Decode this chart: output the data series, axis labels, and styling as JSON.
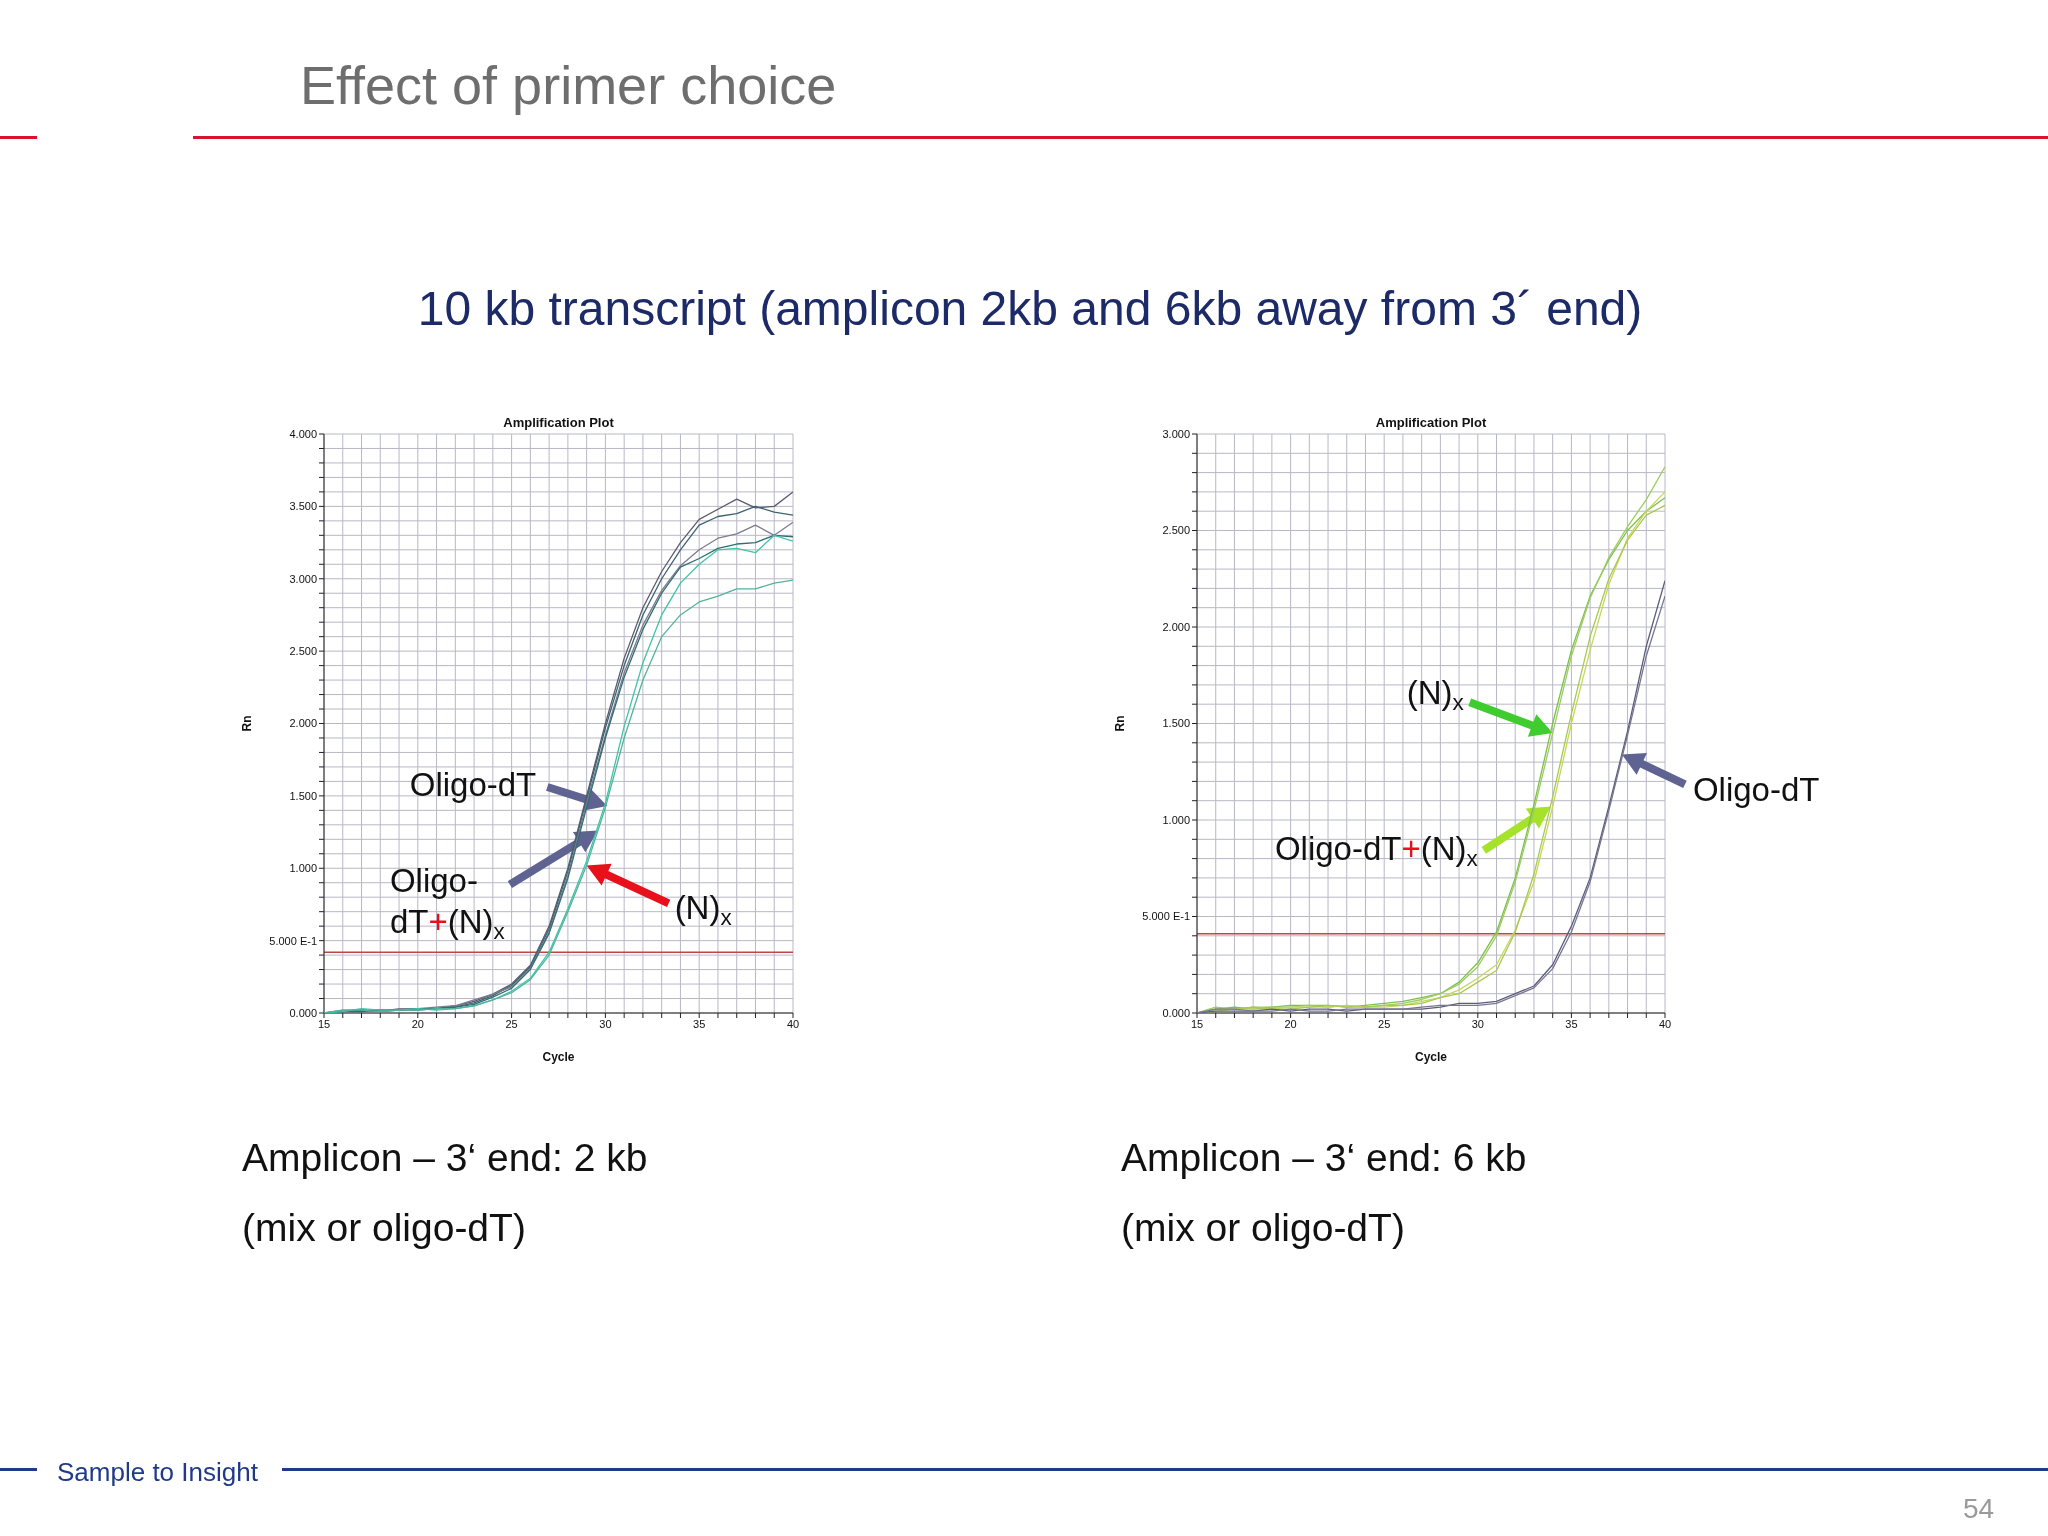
{
  "chart_data": [
    {
      "type": "line",
      "title": "Amplification Plot",
      "xlabel": "Cycle",
      "ylabel": "Rn",
      "grid": true,
      "marker": "none",
      "x": [
        15,
        16,
        17,
        18,
        19,
        20,
        21,
        22,
        23,
        24,
        25,
        26,
        27,
        28,
        29,
        30,
        31,
        32,
        33,
        34,
        35,
        36,
        37,
        38,
        39,
        40
      ],
      "xlim": [
        15,
        40
      ],
      "ylim": [
        0,
        4
      ],
      "xticks": [
        15,
        {
          "value": 16,
          "label": null
        },
        {
          "value": 17,
          "label": null
        },
        {
          "value": 18,
          "label": null
        },
        {
          "value": 19,
          "label": null
        },
        20,
        {
          "value": 21,
          "label": null
        },
        {
          "value": 22,
          "label": null
        },
        {
          "value": 23,
          "label": null
        },
        {
          "value": 24,
          "label": null
        },
        25,
        {
          "value": 26,
          "label": null
        },
        {
          "value": 27,
          "label": null
        },
        {
          "value": 28,
          "label": null
        },
        {
          "value": 29,
          "label": null
        },
        30,
        {
          "value": 31,
          "label": null
        },
        {
          "value": 32,
          "label": null
        },
        {
          "value": 33,
          "label": null
        },
        {
          "value": 34,
          "label": null
        },
        35,
        {
          "value": 36,
          "label": null
        },
        {
          "value": 37,
          "label": null
        },
        {
          "value": 38,
          "label": null
        },
        {
          "value": 39,
          "label": null
        },
        40
      ],
      "yticks": [
        {
          "value": 0,
          "label": "0.000"
        },
        {
          "value": 0.1,
          "label": null
        },
        {
          "value": 0.2,
          "label": null
        },
        {
          "value": 0.3,
          "label": null
        },
        {
          "value": 0.4,
          "label": null
        },
        {
          "value": 0.5,
          "label": "5.000 E-1"
        },
        {
          "value": 0.6,
          "label": null
        },
        {
          "value": 0.7,
          "label": null
        },
        {
          "value": 0.8,
          "label": null
        },
        {
          "value": 0.9,
          "label": null
        },
        {
          "value": 1,
          "label": "1.000"
        },
        {
          "value": 1.1,
          "label": null
        },
        {
          "value": 1.2,
          "label": null
        },
        {
          "value": 1.3,
          "label": null
        },
        {
          "value": 1.4,
          "label": null
        },
        {
          "value": 1.5,
          "label": "1.500"
        },
        {
          "value": 1.6,
          "label": null
        },
        {
          "value": 1.7,
          "label": null
        },
        {
          "value": 1.8,
          "label": null
        },
        {
          "value": 1.9,
          "label": null
        },
        {
          "value": 2,
          "label": "2.000"
        },
        {
          "value": 2.1,
          "label": null
        },
        {
          "value": 2.2,
          "label": null
        },
        {
          "value": 2.3,
          "label": null
        },
        {
          "value": 2.4,
          "label": null
        },
        {
          "value": 2.5,
          "label": "2.500"
        },
        {
          "value": 2.6,
          "label": null
        },
        {
          "value": 2.7,
          "label": null
        },
        {
          "value": 2.8,
          "label": null
        },
        {
          "value": 2.9,
          "label": null
        },
        {
          "value": 3,
          "label": "3.000"
        },
        {
          "value": 3.1,
          "label": null
        },
        {
          "value": 3.2,
          "label": null
        },
        {
          "value": 3.3,
          "label": null
        },
        {
          "value": 3.4,
          "label": null
        },
        {
          "value": 3.5,
          "label": "3.500"
        },
        {
          "value": 3.6,
          "label": null
        },
        {
          "value": 3.7,
          "label": null
        },
        {
          "value": 3.8,
          "label": null
        },
        {
          "value": 3.9,
          "label": null
        },
        {
          "value": 4,
          "label": "4.000"
        }
      ],
      "series": [
        {
          "color": "#5b5b6e",
          "values": [
            0,
            0.01,
            0.02,
            0.01,
            0.02,
            0.03,
            0.03,
            0.05,
            0.08,
            0.13,
            0.2,
            0.33,
            0.6,
            1.0,
            1.5,
            2.0,
            2.45,
            2.8,
            3.05,
            3.25,
            3.41,
            3.48,
            3.55,
            3.49,
            3.5,
            3.6
          ]
        },
        {
          "color": "#3d6270",
          "values": [
            0,
            0.01,
            0.01,
            0.02,
            0.02,
            0.02,
            0.03,
            0.04,
            0.07,
            0.12,
            0.19,
            0.32,
            0.58,
            0.98,
            1.48,
            1.97,
            2.4,
            2.75,
            3.0,
            3.2,
            3.37,
            3.43,
            3.45,
            3.5,
            3.46,
            3.44
          ]
        },
        {
          "color": "#7c7c8e",
          "values": [
            0,
            0.02,
            0.02,
            0.01,
            0.03,
            0.03,
            0.04,
            0.05,
            0.09,
            0.13,
            0.18,
            0.31,
            0.56,
            0.95,
            1.45,
            1.92,
            2.35,
            2.68,
            2.92,
            3.09,
            3.2,
            3.28,
            3.31,
            3.37,
            3.3,
            3.39
          ]
        },
        {
          "color": "#2f6e74",
          "values": [
            0,
            0.01,
            0.02,
            0.02,
            0.02,
            0.03,
            0.03,
            0.04,
            0.06,
            0.11,
            0.17,
            0.3,
            0.55,
            0.93,
            1.42,
            1.9,
            2.32,
            2.65,
            2.9,
            3.08,
            3.14,
            3.21,
            3.24,
            3.25,
            3.3,
            3.29
          ]
        },
        {
          "color": "#3fc4a6",
          "values": [
            0,
            0.01,
            0.03,
            0.02,
            0.02,
            0.03,
            0.02,
            0.03,
            0.05,
            0.09,
            0.15,
            0.24,
            0.42,
            0.72,
            1.05,
            1.45,
            1.98,
            2.42,
            2.75,
            2.97,
            3.1,
            3.2,
            3.21,
            3.18,
            3.3,
            3.26
          ]
        },
        {
          "color": "#52b39c",
          "values": [
            0,
            0.02,
            0.02,
            0.01,
            0.02,
            0.02,
            0.03,
            0.03,
            0.05,
            0.09,
            0.14,
            0.23,
            0.4,
            0.7,
            1.02,
            1.42,
            1.9,
            2.3,
            2.6,
            2.75,
            2.84,
            2.88,
            2.93,
            2.93,
            2.97,
            2.99
          ]
        }
      ],
      "ref_lines": [
        {
          "axis": "y",
          "value": 0.42,
          "color": "#b84a44"
        }
      ],
      "annotations": [
        "Effect of primer choice",
        "10 kb transcript (amplicon 2kb and 6kb away from 3´ end)",
        {
          "text": "Oligo-dT",
          "x": 30.1,
          "y": 1.43
        },
        {
          "text": "Oligo-dT+(N)$_{x}$",
          "x": 29.6,
          "y": 1.26
        },
        {
          "text": "(N)$_{x}$",
          "x": 29,
          "y": 1.02
        },
        "Amplicon – 3‘ end: 2 kb",
        "(mix or oligo-dT)",
        "Sample to Insight",
        "54"
      ]
    },
    {
      "type": "line",
      "title": "Amplification Plot",
      "xlabel": "Cycle",
      "ylabel": "Rn",
      "grid": true,
      "marker": "none",
      "x": [
        15,
        16,
        17,
        18,
        19,
        20,
        21,
        22,
        23,
        24,
        25,
        26,
        27,
        28,
        29,
        30,
        31,
        32,
        33,
        34,
        35,
        36,
        37,
        38,
        39,
        40
      ],
      "xlim": [
        15,
        40
      ],
      "ylim": [
        0,
        3
      ],
      "xticks": [
        15,
        {
          "value": 16,
          "label": null
        },
        {
          "value": 17,
          "label": null
        },
        {
          "value": 18,
          "label": null
        },
        {
          "value": 19,
          "label": null
        },
        20,
        {
          "value": 21,
          "label": null
        },
        {
          "value": 22,
          "label": null
        },
        {
          "value": 23,
          "label": null
        },
        {
          "value": 24,
          "label": null
        },
        25,
        {
          "value": 26,
          "label": null
        },
        {
          "value": 27,
          "label": null
        },
        {
          "value": 28,
          "label": null
        },
        {
          "value": 29,
          "label": null
        },
        30,
        {
          "value": 31,
          "label": null
        },
        {
          "value": 32,
          "label": null
        },
        {
          "value": 33,
          "label": null
        },
        {
          "value": 34,
          "label": null
        },
        35,
        {
          "value": 36,
          "label": null
        },
        {
          "value": 37,
          "label": null
        },
        {
          "value": 38,
          "label": null
        },
        {
          "value": 39,
          "label": null
        },
        40
      ],
      "yticks": [
        {
          "value": 0,
          "label": "0.000"
        },
        {
          "value": 0.1,
          "label": null
        },
        {
          "value": 0.2,
          "label": null
        },
        {
          "value": 0.3,
          "label": null
        },
        {
          "value": 0.4,
          "label": null
        },
        {
          "value": 0.5,
          "label": "5.000 E-1"
        },
        {
          "value": 0.6,
          "label": null
        },
        {
          "value": 0.7,
          "label": null
        },
        {
          "value": 0.8,
          "label": null
        },
        {
          "value": 0.9,
          "label": null
        },
        {
          "value": 1,
          "label": "1.000"
        },
        {
          "value": 1.1,
          "label": null
        },
        {
          "value": 1.2,
          "label": null
        },
        {
          "value": 1.3,
          "label": null
        },
        {
          "value": 1.4,
          "label": null
        },
        {
          "value": 1.5,
          "label": "1.500"
        },
        {
          "value": 1.6,
          "label": null
        },
        {
          "value": 1.7,
          "label": null
        },
        {
          "value": 1.8,
          "label": null
        },
        {
          "value": 1.9,
          "label": null
        },
        {
          "value": 2,
          "label": "2.000"
        },
        {
          "value": 2.1,
          "label": null
        },
        {
          "value": 2.2,
          "label": null
        },
        {
          "value": 2.3,
          "label": null
        },
        {
          "value": 2.4,
          "label": null
        },
        {
          "value": 2.5,
          "label": "2.500"
        },
        {
          "value": 2.6,
          "label": null
        },
        {
          "value": 2.7,
          "label": null
        },
        {
          "value": 2.8,
          "label": null
        },
        {
          "value": 2.9,
          "label": null
        },
        {
          "value": 3,
          "label": "3.000"
        }
      ],
      "series": [
        {
          "color": "#7cbf4a",
          "values": [
            0,
            0.02,
            0.03,
            0.02,
            0.03,
            0.04,
            0.04,
            0.04,
            0.03,
            0.04,
            0.05,
            0.06,
            0.08,
            0.1,
            0.16,
            0.26,
            0.42,
            0.7,
            1.08,
            1.5,
            1.88,
            2.16,
            2.35,
            2.5,
            2.6,
            2.67
          ]
        },
        {
          "color": "#9ccc62",
          "values": [
            0,
            0.03,
            0.02,
            0.03,
            0.03,
            0.03,
            0.04,
            0.03,
            0.04,
            0.03,
            0.04,
            0.05,
            0.07,
            0.1,
            0.15,
            0.24,
            0.4,
            0.68,
            1.05,
            1.45,
            1.85,
            2.15,
            2.36,
            2.52,
            2.66,
            2.83
          ]
        },
        {
          "color": "#c6d85a",
          "values": [
            0,
            0.01,
            0.02,
            0.02,
            0.02,
            0.03,
            0.03,
            0.03,
            0.04,
            0.03,
            0.03,
            0.04,
            0.06,
            0.08,
            0.12,
            0.18,
            0.25,
            0.43,
            0.68,
            1.07,
            1.5,
            1.88,
            2.22,
            2.46,
            2.6,
            2.7
          ]
        },
        {
          "color": "#a8c850",
          "values": [
            0,
            0.02,
            0.02,
            0.03,
            0.02,
            0.02,
            0.03,
            0.04,
            0.03,
            0.03,
            0.04,
            0.04,
            0.05,
            0.08,
            0.1,
            0.16,
            0.22,
            0.42,
            0.72,
            1.12,
            1.55,
            1.95,
            2.25,
            2.45,
            2.58,
            2.63
          ]
        },
        {
          "color": "#5c5c80",
          "values": [
            0,
            0.01,
            0.01,
            0.01,
            0.02,
            0.01,
            0.02,
            0.02,
            0.01,
            0.02,
            0.02,
            0.02,
            0.02,
            0.03,
            0.05,
            0.05,
            0.06,
            0.1,
            0.14,
            0.25,
            0.45,
            0.7,
            1.07,
            1.46,
            1.9,
            2.24
          ]
        },
        {
          "color": "#76768f",
          "values": [
            0,
            0.02,
            0.02,
            0.01,
            0.01,
            0.02,
            0.01,
            0.01,
            0.02,
            0.02,
            0.02,
            0.02,
            0.03,
            0.04,
            0.04,
            0.04,
            0.05,
            0.09,
            0.13,
            0.23,
            0.42,
            0.68,
            1.05,
            1.44,
            1.85,
            2.16
          ]
        }
      ],
      "ref_lines": [
        {
          "axis": "y",
          "value": 0.41,
          "color": "#b84a44"
        }
      ],
      "annotations": [
        {
          "text": "(N)$_{x}$",
          "x": 34,
          "y": 1.45
        },
        {
          "text": "Oligo-dT+(N)$_{x}$",
          "x": 33.9,
          "y": 1.07
        },
        {
          "text": "Oligo-dT",
          "x": 37.7,
          "y": 1.34
        },
        "Amplicon – 3‘ end: 6 kb",
        "(mix or oligo-dT)"
      ]
    }
  ]
}
